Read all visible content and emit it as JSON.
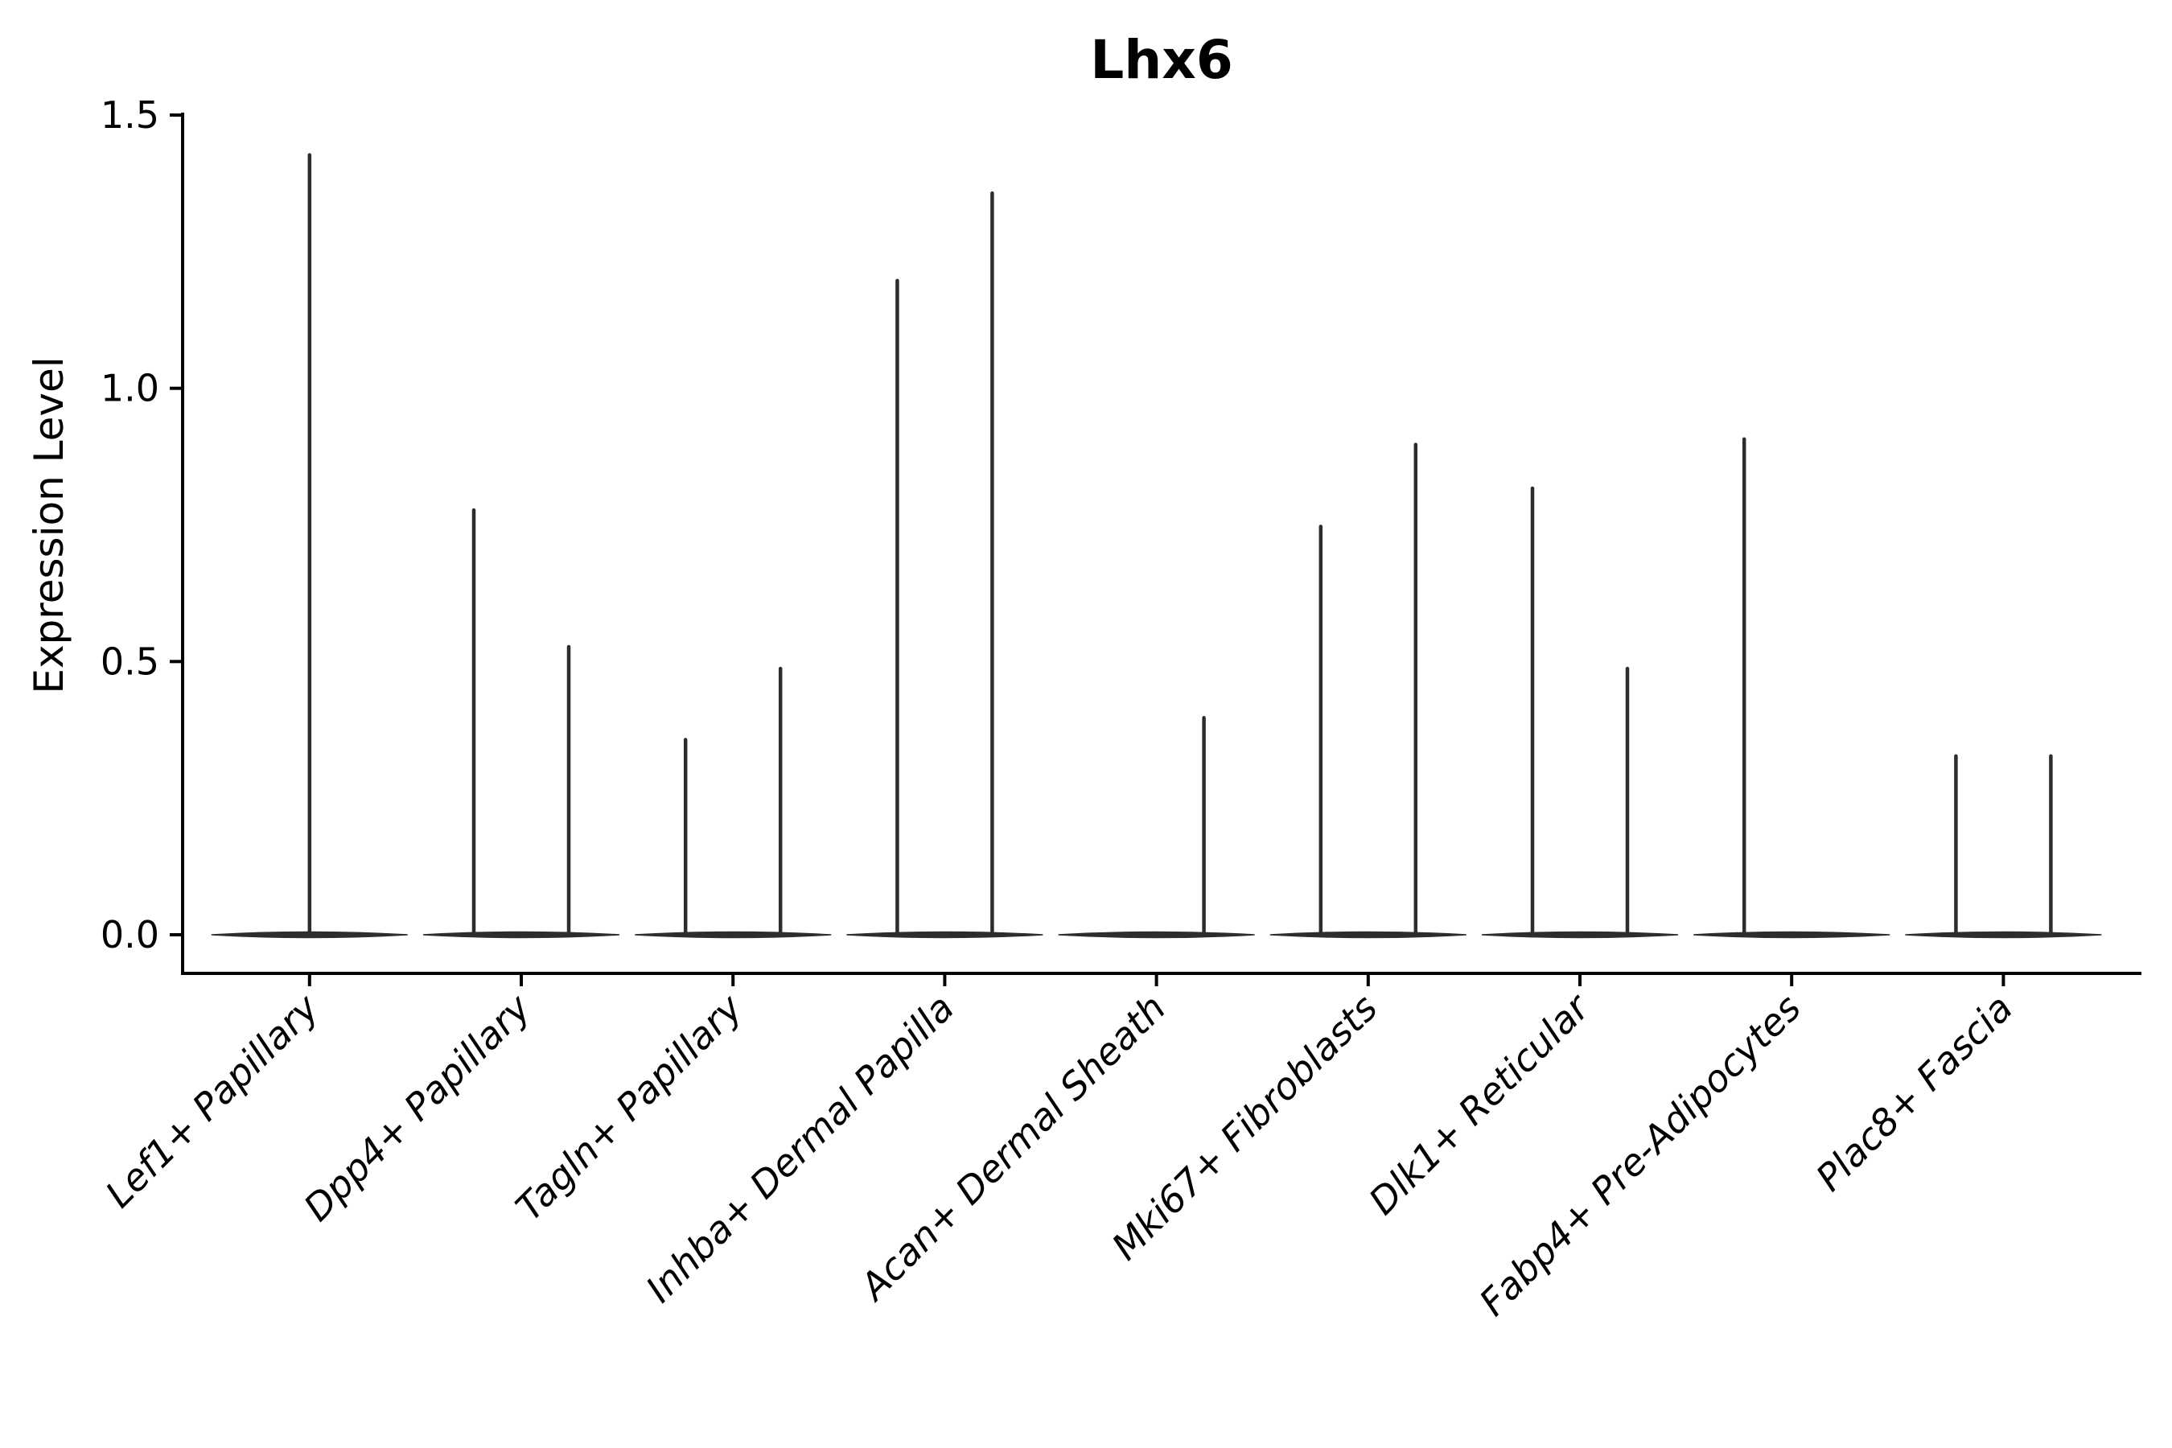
{
  "figure": {
    "title": "Lhx6"
  },
  "chart_data": {
    "type": "violin",
    "title": "Lhx6",
    "xlabel": "",
    "ylabel": "Expression Level",
    "ylim": [
      0,
      1.5
    ],
    "yticks": [
      0.0,
      0.5,
      1.0,
      1.5
    ],
    "ytick_labels": [
      "0.0",
      "0.5",
      "1.0",
      "1.5"
    ],
    "grid": false,
    "legend_position": "none",
    "violin_color": "#2d2d2d",
    "axis_color": "#000000",
    "background_color": "#ffffff",
    "categories": [
      "Lef1+ Papillary",
      "Dpp4+ Papillary",
      "Tagln+ Papillary",
      "Inhba+ Dermal Papilla",
      "Acan+ Dermal Sheath",
      "Mki67+ Fibroblasts",
      "Dlk1+ Reticular",
      "Fabp4+ Pre-Adipocytes",
      "Plac8+ Fascia"
    ],
    "description": "Each category shows a flat violin body at expression 0 with thin spikes reaching the maximum expression of rare positive cells; two dodge slots (left/right) per category.",
    "series": [
      {
        "category": "Lef1+ Papillary",
        "baseline": 0,
        "spikes": [
          {
            "slot": "center",
            "max": 1.43
          }
        ]
      },
      {
        "category": "Dpp4+ Papillary",
        "baseline": 0,
        "spikes": [
          {
            "slot": "left",
            "max": 0.78
          },
          {
            "slot": "right",
            "max": 0.53
          }
        ]
      },
      {
        "category": "Tagln+ Papillary",
        "baseline": 0,
        "spikes": [
          {
            "slot": "left",
            "max": 0.36
          },
          {
            "slot": "right",
            "max": 0.49
          }
        ]
      },
      {
        "category": "Inhba+ Dermal Papilla",
        "baseline": 0,
        "spikes": [
          {
            "slot": "left",
            "max": 1.2
          },
          {
            "slot": "right",
            "max": 1.36
          }
        ]
      },
      {
        "category": "Acan+ Dermal Sheath",
        "baseline": 0,
        "spikes": [
          {
            "slot": "right",
            "max": 0.4
          }
        ]
      },
      {
        "category": "Mki67+ Fibroblasts",
        "baseline": 0,
        "spikes": [
          {
            "slot": "left",
            "max": 0.75
          },
          {
            "slot": "right",
            "max": 0.9
          }
        ]
      },
      {
        "category": "Dlk1+ Reticular",
        "baseline": 0,
        "spikes": [
          {
            "slot": "left",
            "max": 0.82
          },
          {
            "slot": "right",
            "max": 0.49
          }
        ]
      },
      {
        "category": "Fabp4+ Pre-Adipocytes",
        "baseline": 0,
        "spikes": [
          {
            "slot": "left",
            "max": 0.91
          }
        ]
      },
      {
        "category": "Plac8+ Fascia",
        "baseline": 0,
        "spikes": [
          {
            "slot": "left",
            "max": 0.33
          },
          {
            "slot": "right",
            "max": 0.33
          }
        ]
      }
    ]
  }
}
